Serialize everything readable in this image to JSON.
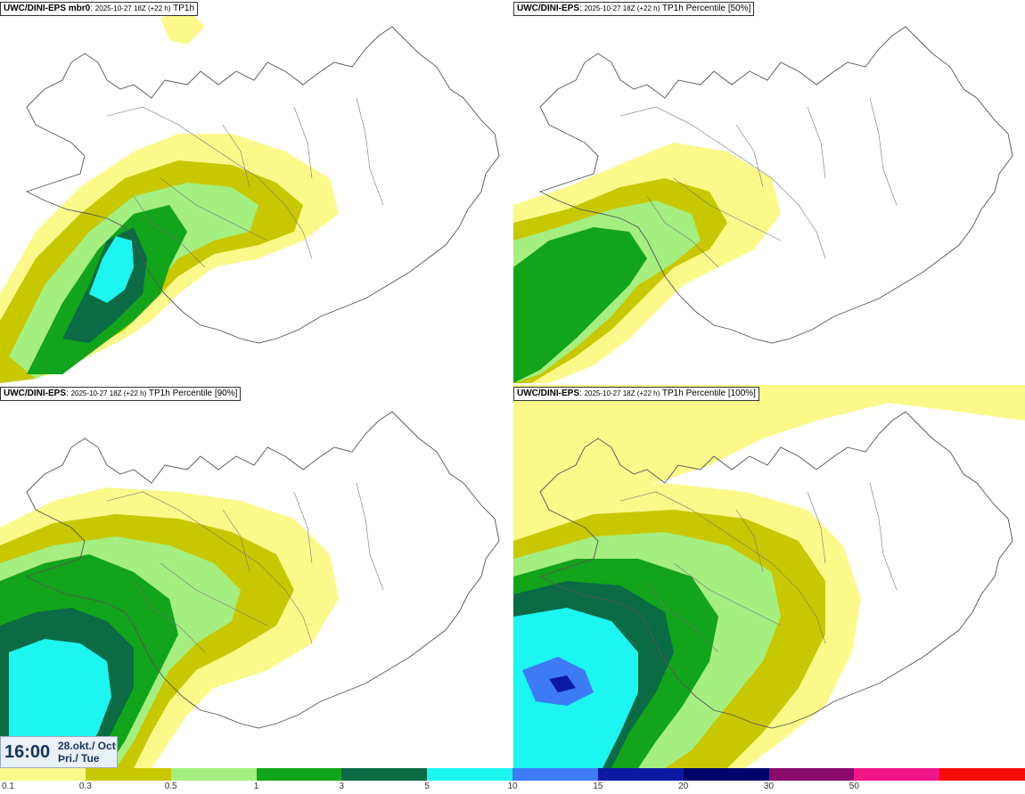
{
  "panels": [
    {
      "model": "UWC/DINI-EPS mbr0",
      "meta": "2025-10-27 18Z (+22 h)",
      "param": "TP1h"
    },
    {
      "model": "UWC/DINI-EPS",
      "meta": "2025-10-27 18Z (+22 h)",
      "param": "TP1h Percentile [50%]"
    },
    {
      "model": "UWC/DINI-EPS",
      "meta": "2025-10-27 18Z (+22 h)",
      "param": "TP1h Percentile [90%]"
    },
    {
      "model": "UWC/DINI-EPS",
      "meta": "2025-10-27 18Z (+22 h)",
      "param": "TP1h Percentile [100%]"
    }
  ],
  "clock": {
    "time": "16:00",
    "date_line1": "28.okt./ Oct",
    "date_line2": "Þri./ Tue"
  },
  "legend": {
    "colors": [
      "#fbf98a",
      "#c8c800",
      "#a5ee80",
      "#12a41a",
      "#0a6b45",
      "#1cf5f0",
      "#3c7bf4",
      "#0c1aa3",
      "#02026c",
      "#8a0a6e",
      "#f01588",
      "#f50a0a"
    ],
    "ticks": [
      "0.1",
      "0.3",
      "0.5",
      "1",
      "3",
      "5",
      "10",
      "15",
      "20",
      "30",
      "50"
    ]
  },
  "colors": {
    "level_0_1": "#fbf98a",
    "level_0_3": "#c8c800",
    "level_0_5": "#a5ee80",
    "level_1": "#12a41a",
    "level_3": "#0a6b45",
    "level_5": "#1cf5f0",
    "level_10": "#3c7bf4",
    "level_15": "#0c1aa3",
    "coast": "#555555"
  }
}
